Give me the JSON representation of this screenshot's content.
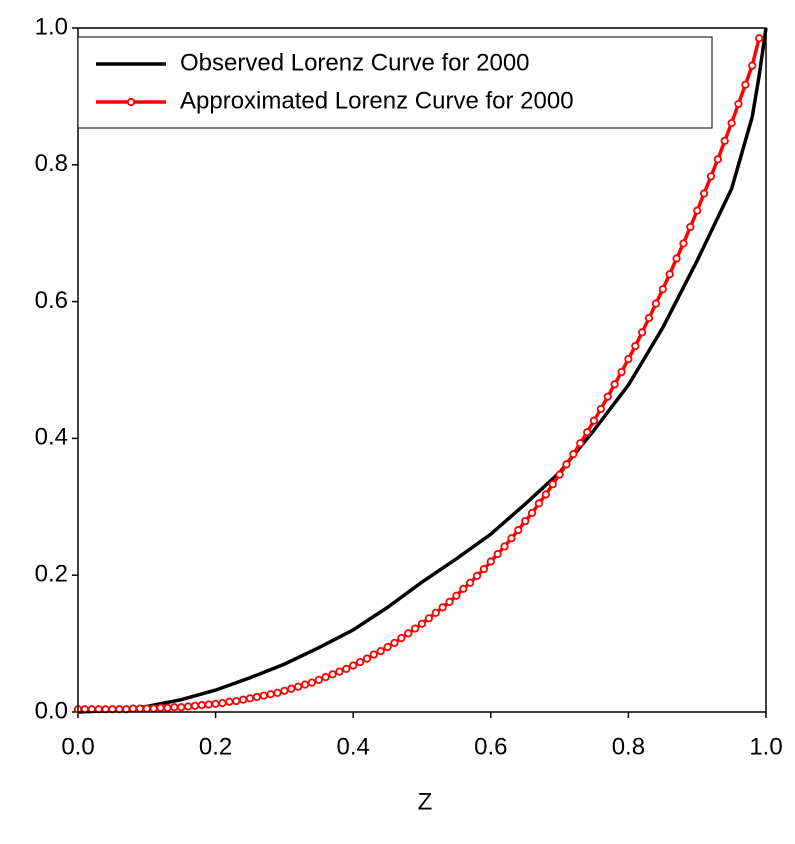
{
  "chart_data": {
    "type": "line",
    "xlabel": "Z",
    "xlim": [
      0,
      1
    ],
    "ylim": [
      0,
      1
    ],
    "xticks": [
      {
        "value": 0,
        "label": "0.0"
      },
      0.2,
      0.4,
      0.6,
      0.8,
      {
        "value": 1,
        "label": "1.0"
      }
    ],
    "yticks": [
      {
        "value": 0,
        "label": "0.0"
      },
      0.2,
      0.4,
      0.6,
      0.8,
      {
        "value": 1,
        "label": "1.0"
      }
    ],
    "grid": false,
    "legend": "upper left",
    "series": [
      {
        "name": "Observed Lorenz Curve for 2000",
        "color": "#000000",
        "markers": false,
        "x": [
          0,
          0.05,
          0.1,
          0.15,
          0.2,
          0.25,
          0.3,
          0.35,
          0.4,
          0.45,
          0.5,
          0.55,
          0.6,
          0.65,
          0.7,
          0.75,
          0.8,
          0.85,
          0.9,
          0.95,
          0.98,
          0.99,
          1
        ],
        "values": [
          0,
          0.002,
          0.008,
          0.018,
          0.032,
          0.05,
          0.07,
          0.094,
          0.12,
          0.153,
          0.19,
          0.224,
          0.26,
          0.304,
          0.35,
          0.412,
          0.478,
          0.562,
          0.66,
          0.765,
          0.87,
          0.93,
          1
        ]
      },
      {
        "name": "Approximated Lorenz Curve for 2000",
        "color": "#ff0000",
        "markers": true,
        "x": [
          0,
          0.01,
          0.02,
          0.03,
          0.04,
          0.05,
          0.06,
          0.07,
          0.08,
          0.09,
          0.1,
          0.11,
          0.12,
          0.13,
          0.14,
          0.15,
          0.16,
          0.17,
          0.18,
          0.19,
          0.2,
          0.21,
          0.22,
          0.23,
          0.24,
          0.25,
          0.26,
          0.27,
          0.28,
          0.29,
          0.3,
          0.31,
          0.32,
          0.33,
          0.34,
          0.35,
          0.36,
          0.37,
          0.38,
          0.39,
          0.4,
          0.41,
          0.42,
          0.43,
          0.44,
          0.45,
          0.46,
          0.47,
          0.48,
          0.49,
          0.5,
          0.51,
          0.52,
          0.53,
          0.54,
          0.55,
          0.56,
          0.57,
          0.58,
          0.59,
          0.6,
          0.61,
          0.62,
          0.63,
          0.64,
          0.65,
          0.66,
          0.67,
          0.68,
          0.69,
          0.7,
          0.71,
          0.72,
          0.73,
          0.74,
          0.75,
          0.76,
          0.77,
          0.78,
          0.79,
          0.8,
          0.81,
          0.82,
          0.83,
          0.84,
          0.85,
          0.86,
          0.87,
          0.88,
          0.89,
          0.9,
          0.91,
          0.92,
          0.93,
          0.94,
          0.95,
          0.96,
          0.97,
          0.98,
          0.99
        ],
        "values": [
          0.004,
          0.004,
          0.004,
          0.004,
          0.004,
          0.004,
          0.004,
          0.004,
          0.005,
          0.005,
          0.005,
          0.005,
          0.006,
          0.006,
          0.007,
          0.007,
          0.008,
          0.009,
          0.01,
          0.011,
          0.012,
          0.013,
          0.015,
          0.016,
          0.018,
          0.02,
          0.022,
          0.024,
          0.026,
          0.028,
          0.031,
          0.034,
          0.037,
          0.04,
          0.043,
          0.047,
          0.051,
          0.055,
          0.059,
          0.063,
          0.068,
          0.073,
          0.078,
          0.084,
          0.089,
          0.095,
          0.101,
          0.108,
          0.115,
          0.122,
          0.129,
          0.137,
          0.145,
          0.153,
          0.161,
          0.17,
          0.18,
          0.189,
          0.199,
          0.209,
          0.22,
          0.231,
          0.242,
          0.254,
          0.266,
          0.279,
          0.291,
          0.305,
          0.318,
          0.333,
          0.347,
          0.362,
          0.377,
          0.393,
          0.409,
          0.426,
          0.443,
          0.461,
          0.479,
          0.497,
          0.516,
          0.535,
          0.555,
          0.576,
          0.597,
          0.618,
          0.64,
          0.663,
          0.685,
          0.709,
          0.733,
          0.758,
          0.783,
          0.808,
          0.835,
          0.861,
          0.889,
          0.917,
          0.945,
          0.985
        ]
      }
    ]
  }
}
